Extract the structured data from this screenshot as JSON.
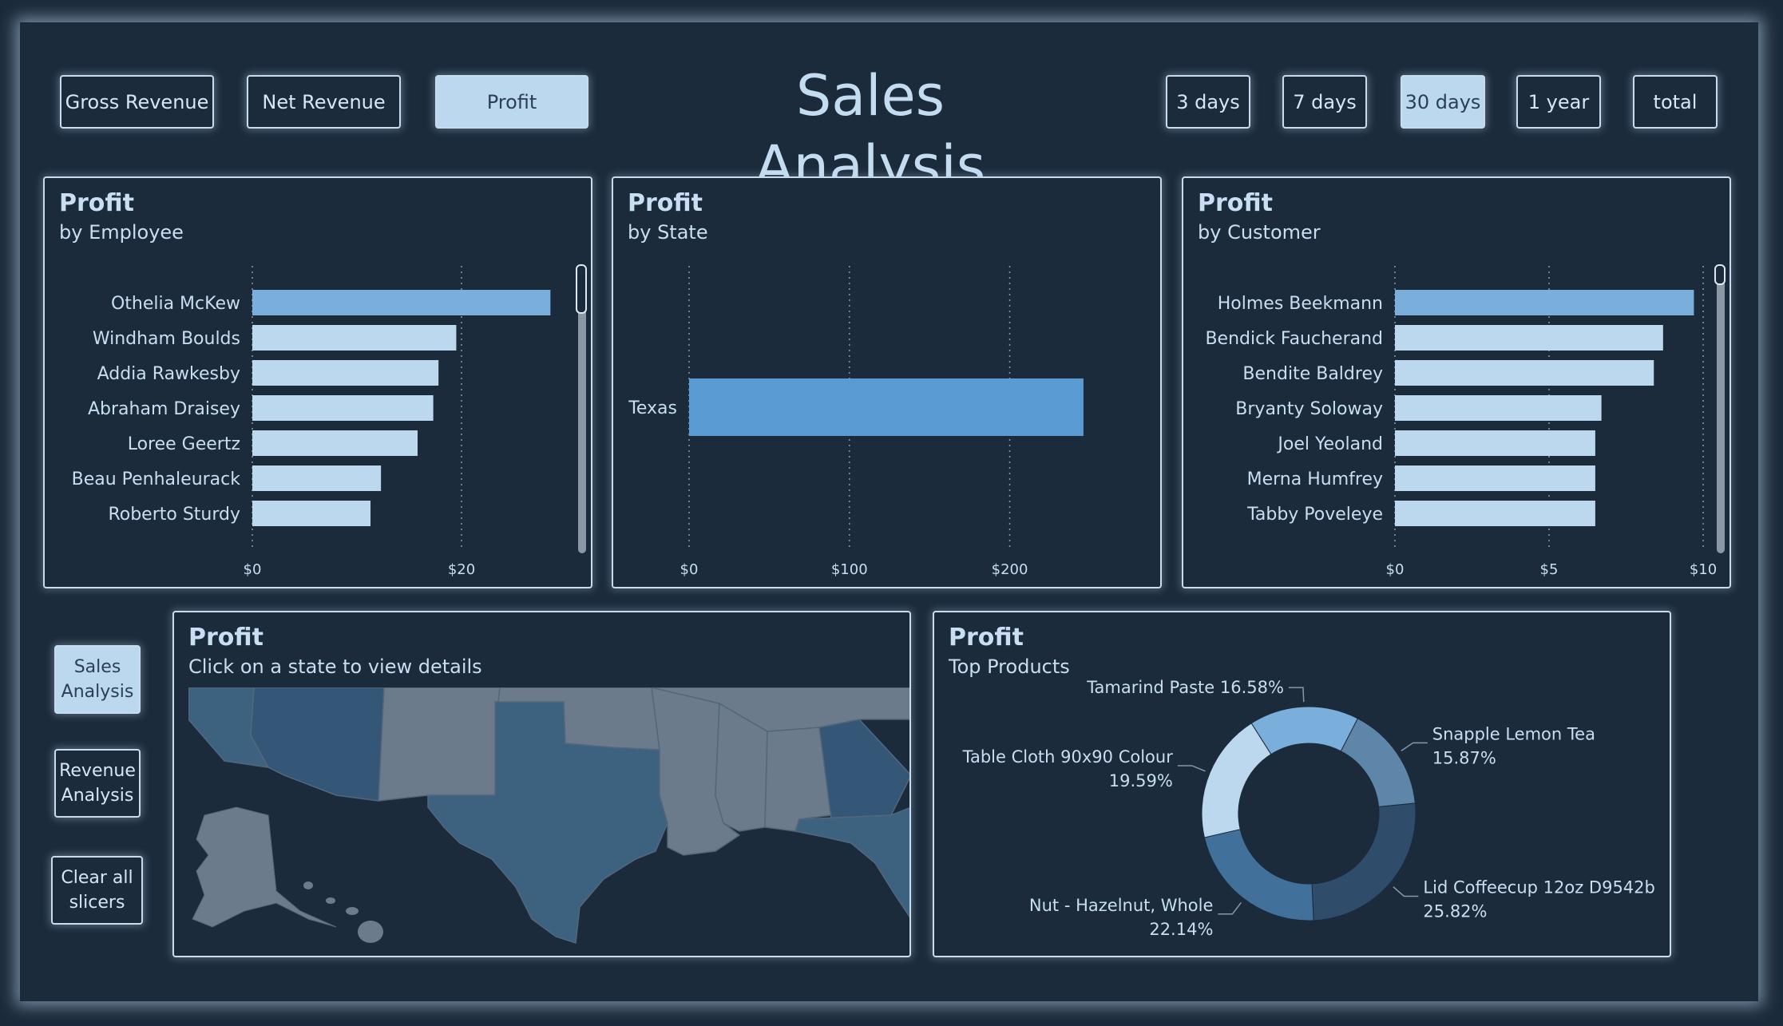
{
  "title": "Sales Analysis",
  "metric_buttons": [
    "Gross Revenue",
    "Net Revenue",
    "Profit"
  ],
  "range_buttons": [
    "3 days",
    "7 days",
    "30 days",
    "1 year",
    "total"
  ],
  "nav_buttons": {
    "sales": "Sales Analysis",
    "revenue": "Revenue Analysis",
    "clear": "Clear all slicers"
  },
  "colors": {
    "background": "#1b2b3c",
    "accent": "#bcd8ef",
    "bar_light": "#bcd8ef",
    "bar_mid": "#7aaedb",
    "bar_strong": "#5b9bd3",
    "map_state": "#6b7b8b",
    "map_selected": "#3d6280"
  },
  "panels": {
    "employee": {
      "title": "Profit",
      "subtitle": "by Employee"
    },
    "state": {
      "title": "Profit",
      "subtitle": "by State"
    },
    "customer": {
      "title": "Profit",
      "subtitle": "by Customer"
    },
    "map": {
      "title": "Profit",
      "subtitle": "Click on a state to view details"
    },
    "products": {
      "title": "Profit",
      "subtitle": "Top Products"
    }
  },
  "chart_data": [
    {
      "type": "bar",
      "orientation": "horizontal",
      "title": "Profit",
      "subtitle": "by Employee",
      "categories": [
        "Othelia McKew",
        "Windham Boulds",
        "Addia Rawkesby",
        "Abraham Draisey",
        "Loree Geertz",
        "Beau Penhaleurack",
        "Roberto Sturdy"
      ],
      "values": [
        28.5,
        19.5,
        17.8,
        17.3,
        15.8,
        12.3,
        11.3
      ],
      "xticks": [
        "$0",
        "$20"
      ],
      "xlim": [
        0,
        30
      ],
      "grid": true,
      "highlight_index": 0
    },
    {
      "type": "bar",
      "orientation": "horizontal",
      "title": "Profit",
      "subtitle": "by State",
      "categories": [
        "Texas"
      ],
      "values": [
        246
      ],
      "xticks": [
        "$0",
        "$100",
        "$200"
      ],
      "xlim": [
        0,
        260
      ],
      "grid": true
    },
    {
      "type": "bar",
      "orientation": "horizontal",
      "title": "Profit",
      "subtitle": "by Customer",
      "categories": [
        "Holmes Beekmann",
        "Bendick Faucherand",
        "Bendite Baldrey",
        "Bryanty Soloway",
        "Joel Yeoland",
        "Merna Humfrey",
        "Tabby Poveleye"
      ],
      "values": [
        9.7,
        8.7,
        8.4,
        6.7,
        6.5,
        6.5,
        6.5
      ],
      "xticks": [
        "$0",
        "$5",
        "$10"
      ],
      "xlim": [
        0,
        10
      ],
      "grid": true,
      "highlight_index": 0
    },
    {
      "type": "pie",
      "style": "donut",
      "title": "Profit",
      "subtitle": "Top Products",
      "slices": [
        {
          "label": "Tamarind Paste",
          "pct_text": "16.58%",
          "value": 16.58,
          "color": "#7aaedb"
        },
        {
          "label": "Snapple Lemon Tea",
          "pct_text": "15.87%",
          "value": 15.87,
          "color": "#5e86a8"
        },
        {
          "label": "Lid Coffeecup 12oz D9542b",
          "pct_text": "25.82%",
          "value": 25.82,
          "color": "#2f4d6b"
        },
        {
          "label": "Nut - Hazelnut, Whole",
          "pct_text": "22.14%",
          "value": 22.14,
          "color": "#41709b"
        },
        {
          "label": "Table Cloth 90x90 Colour",
          "pct_text": "19.59%",
          "value": 19.59,
          "color": "#bcd8ef"
        }
      ]
    }
  ]
}
